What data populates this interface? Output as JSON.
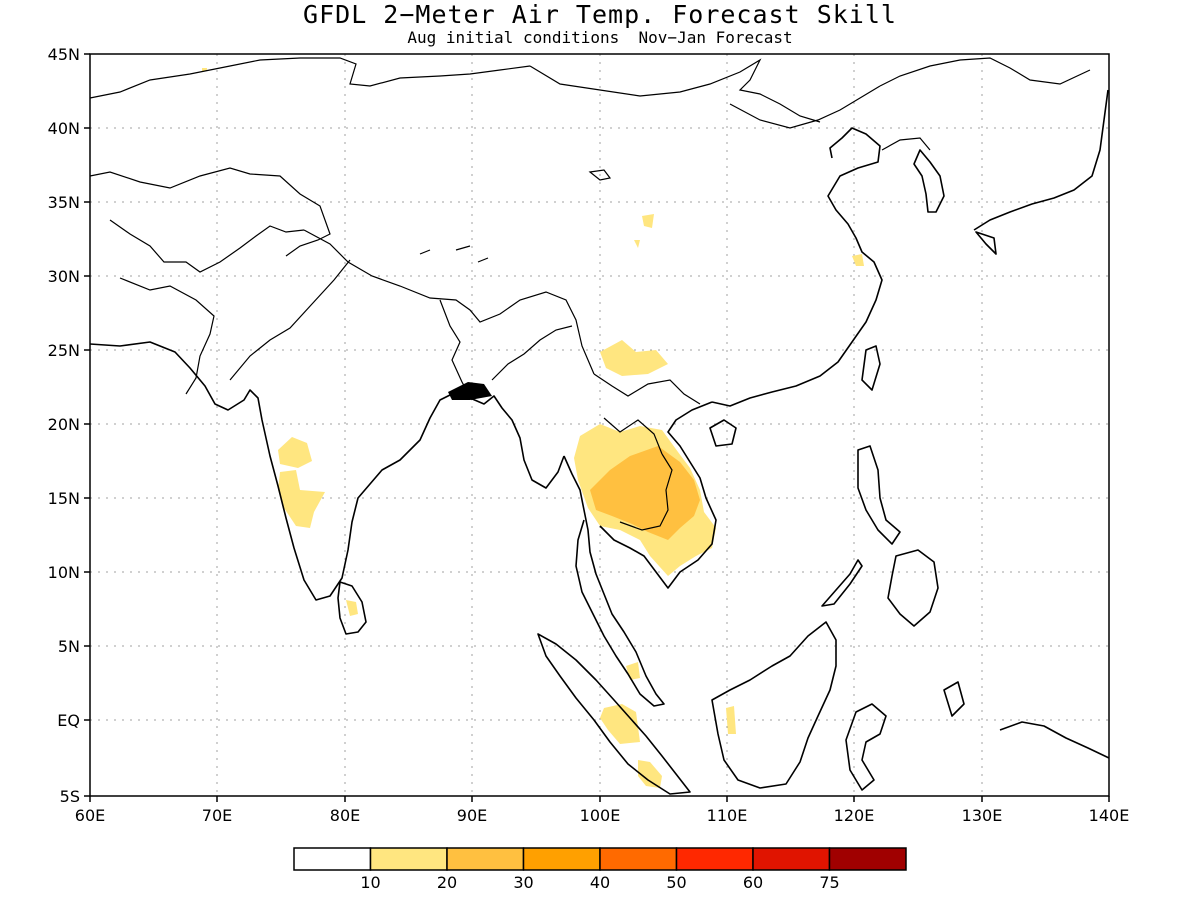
{
  "title": "GFDL 2−Meter Air Temp. Forecast Skill",
  "subtitle": "Aug initial conditions  Nov−Jan Forecast",
  "map": {
    "lon_range": [
      60,
      140
    ],
    "lat_range": [
      -5,
      45
    ],
    "lat_labels": [
      "45N",
      "40N",
      "35N",
      "30N",
      "25N",
      "20N",
      "15N",
      "10N",
      "5N",
      "EQ",
      "5S"
    ],
    "lon_labels": [
      "60E",
      "70E",
      "80E",
      "90E",
      "100E",
      "110E",
      "120E",
      "130E",
      "140E"
    ],
    "gridlines": "dotted"
  },
  "colorbar": {
    "labels": [
      "10",
      "20",
      "30",
      "40",
      "50",
      "60",
      "75"
    ],
    "colors": [
      "#ffffff",
      "#ffe680",
      "#ffc040",
      "#ffa000",
      "#ff6a00",
      "#ff2800",
      "#e01400",
      "#a00000"
    ]
  }
}
